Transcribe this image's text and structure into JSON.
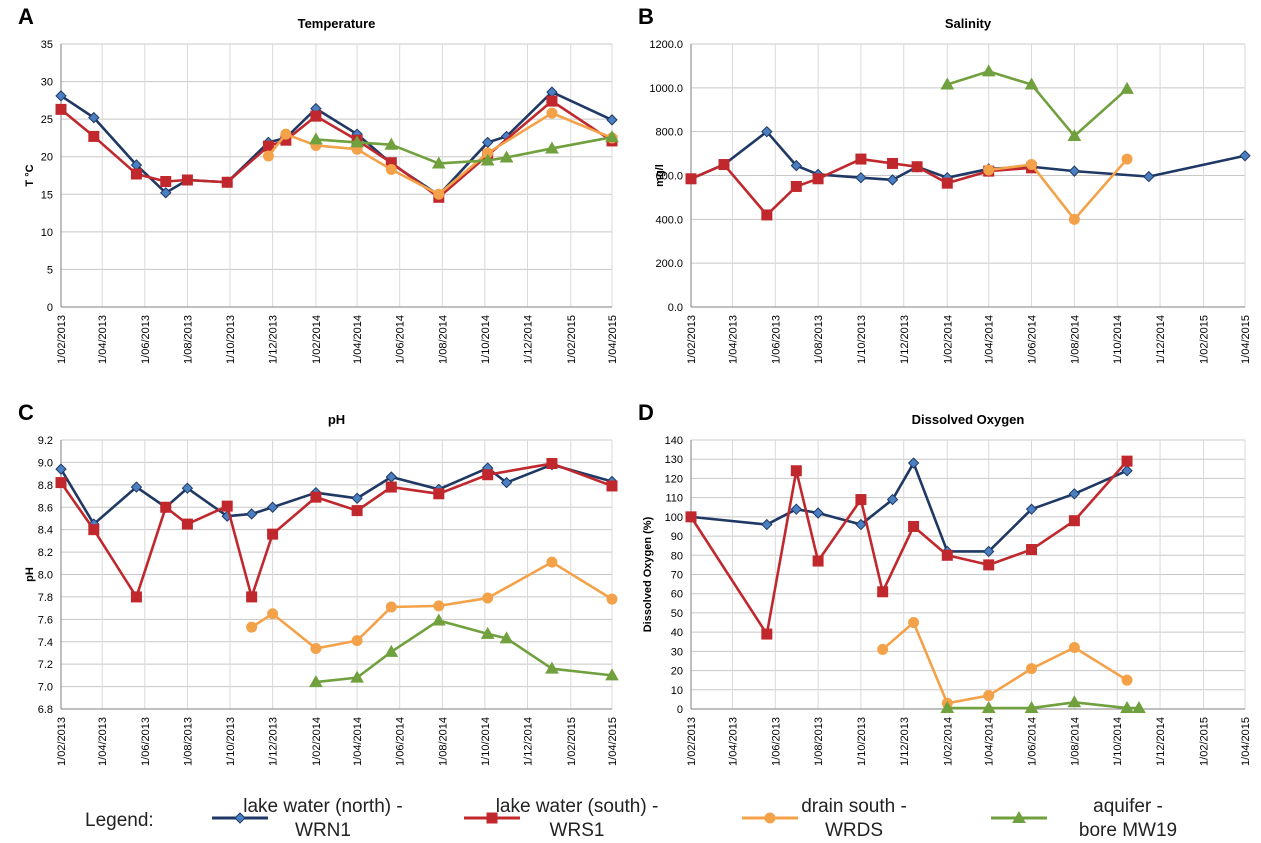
{
  "series_styles": [
    {
      "key": "wrn1",
      "color": "#1f3864",
      "marker_fill": "#4a7fc1",
      "marker": "diamond"
    },
    {
      "key": "wrs1",
      "color": "#c0282d",
      "marker_fill": "#c0282d",
      "marker": "square"
    },
    {
      "key": "wrds",
      "color": "#f4a24a",
      "marker_fill": "#f4a24a",
      "marker": "circle"
    },
    {
      "key": "mw19",
      "color": "#71a03e",
      "marker_fill": "#71a03e",
      "marker": "triangle"
    }
  ],
  "legend": {
    "label": "Legend:",
    "entries": [
      {
        "key": "wrn1",
        "line1": "lake water (north) -",
        "line2": "WRN1"
      },
      {
        "key": "wrs1",
        "line1": "lake water (south) -",
        "line2": "WRS1"
      },
      {
        "key": "wrds",
        "line1": "drain south -",
        "line2": "WRDS"
      },
      {
        "key": "mw19",
        "line1": "aquifer -",
        "line2": "bore MW19"
      }
    ]
  },
  "chart_data": [
    {
      "panel": "A",
      "type": "line",
      "title": "Temperature",
      "ylabel": "T °C",
      "ylim": [
        0,
        35
      ],
      "y_ticks": [
        0,
        5,
        10,
        15,
        20,
        25,
        30,
        35
      ],
      "y_tick_labels": [
        "0",
        "5",
        "10",
        "15",
        "20",
        "25",
        "30",
        "35"
      ],
      "x_domain": [
        "2013-02-01",
        "2015-04-01"
      ],
      "x_tick_labels": [
        "1/02/2013",
        "1/04/2013",
        "1/06/2013",
        "1/08/2013",
        "1/10/2013",
        "1/12/2013",
        "1/02/2014",
        "1/04/2014",
        "1/06/2014",
        "1/08/2014",
        "1/10/2014",
        "1/12/2014",
        "1/02/2015",
        "1/04/2015"
      ],
      "grid": true,
      "series": [
        {
          "key": "wrn1",
          "x": [
            "2013-02-01",
            "2013-03-20",
            "2013-05-20",
            "2013-07-01",
            "2013-08-01",
            "2013-09-27",
            "2013-11-25",
            "2013-12-20",
            "2014-02-01",
            "2014-04-01",
            "2014-05-20",
            "2014-07-27",
            "2014-10-05",
            "2014-11-01",
            "2015-01-05",
            "2015-04-01"
          ],
          "y": [
            28.1,
            25.2,
            18.9,
            15.2,
            16.9,
            16.6,
            21.9,
            22.5,
            26.4,
            23.0,
            19.1,
            14.9,
            21.9,
            22.7,
            28.6,
            24.9
          ]
        },
        {
          "key": "wrs1",
          "x": [
            "2013-02-01",
            "2013-03-20",
            "2013-05-20",
            "2013-07-01",
            "2013-08-01",
            "2013-09-27",
            "2013-11-25",
            "2013-12-20",
            "2014-02-01",
            "2014-04-01",
            "2014-05-20",
            "2014-07-27",
            "2014-10-05",
            "2015-01-05",
            "2015-04-01"
          ],
          "y": [
            26.3,
            22.7,
            17.7,
            16.7,
            16.9,
            16.6,
            21.4,
            22.2,
            25.4,
            22.2,
            19.2,
            14.6,
            20.2,
            27.4,
            22.1
          ]
        },
        {
          "key": "wrds",
          "x": [
            "2013-11-25",
            "2013-12-20",
            "2014-02-01",
            "2014-04-01",
            "2014-05-20",
            "2014-07-27",
            "2014-10-05",
            "2015-01-05",
            "2015-04-01"
          ],
          "y": [
            20.1,
            23.0,
            21.5,
            21.0,
            18.3,
            15.0,
            20.5,
            25.8,
            22.5
          ]
        },
        {
          "key": "mw19",
          "x": [
            "2014-02-01",
            "2014-04-01",
            "2014-05-20",
            "2014-07-27",
            "2014-10-05",
            "2014-11-01",
            "2015-01-05",
            "2015-04-01"
          ],
          "y": [
            22.3,
            21.9,
            21.6,
            19.1,
            19.5,
            19.9,
            21.1,
            22.6
          ]
        }
      ]
    },
    {
      "panel": "B",
      "type": "line",
      "title": "Salinity",
      "ylabel": "mg/l",
      "ylim": [
        0,
        1200
      ],
      "y_ticks": [
        0,
        200,
        400,
        600,
        800,
        1000,
        1200
      ],
      "y_tick_labels": [
        "0.0",
        "200.0",
        "400.0",
        "600.0",
        "800.0",
        "1000.0",
        "1200.0"
      ],
      "x_domain": [
        "2013-02-01",
        "2015-04-01"
      ],
      "x_tick_labels": [
        "1/02/2013",
        "1/04/2013",
        "1/06/2013",
        "1/08/2013",
        "1/10/2013",
        "1/12/2013",
        "1/02/2014",
        "1/04/2014",
        "1/06/2014",
        "1/08/2014",
        "1/10/2014",
        "1/12/2014",
        "1/02/2015",
        "1/04/2015"
      ],
      "grid": true,
      "series": [
        {
          "key": "wrn1",
          "x": [
            "2013-02-01",
            "2013-03-20",
            "2013-05-20",
            "2013-07-01",
            "2013-08-01",
            "2013-10-01",
            "2013-11-15",
            "2013-12-20",
            "2014-02-01",
            "2014-04-01",
            "2014-06-01",
            "2014-08-01",
            "2014-11-15",
            "2015-04-01"
          ],
          "y": [
            585,
            650,
            800,
            645,
            605,
            590,
            580,
            640,
            590,
            630,
            640,
            620,
            595,
            690
          ]
        },
        {
          "key": "wrs1",
          "x": [
            "2013-02-01",
            "2013-03-20",
            "2013-05-20",
            "2013-07-01",
            "2013-08-01",
            "2013-10-01",
            "2013-11-15",
            "2013-12-20",
            "2014-02-01",
            "2014-04-01",
            "2014-06-01"
          ],
          "y": [
            585,
            650,
            420,
            550,
            585,
            675,
            655,
            640,
            565,
            620,
            635
          ]
        },
        {
          "key": "wrds",
          "x": [
            "2014-04-01",
            "2014-06-01",
            "2014-08-01",
            "2014-10-15"
          ],
          "y": [
            625,
            650,
            400,
            675
          ]
        },
        {
          "key": "mw19",
          "x": [
            "2014-02-01",
            "2014-04-01",
            "2014-06-01",
            "2014-08-01",
            "2014-10-15"
          ],
          "y": [
            1015,
            1075,
            1015,
            780,
            995
          ]
        }
      ]
    },
    {
      "panel": "C",
      "type": "line",
      "title": "pH",
      "ylabel": "pH",
      "ylim": [
        6.8,
        9.2
      ],
      "y_ticks": [
        6.8,
        7.0,
        7.2,
        7.4,
        7.6,
        7.8,
        8.0,
        8.2,
        8.4,
        8.6,
        8.8,
        9.0,
        9.2
      ],
      "y_tick_labels": [
        "6.8",
        "7.0",
        "7.2",
        "7.4",
        "7.6",
        "7.8",
        "8.0",
        "8.2",
        "8.4",
        "8.6",
        "8.8",
        "9.0",
        "9.2"
      ],
      "x_domain": [
        "2013-02-01",
        "2015-04-01"
      ],
      "x_tick_labels": [
        "1/02/2013",
        "1/04/2013",
        "1/06/2013",
        "1/08/2013",
        "1/10/2013",
        "1/12/2013",
        "1/02/2014",
        "1/04/2014",
        "1/06/2014",
        "1/08/2014",
        "1/10/2014",
        "1/12/2014",
        "1/02/2015",
        "1/04/2015"
      ],
      "grid": true,
      "series": [
        {
          "key": "wrn1",
          "x": [
            "2013-02-01",
            "2013-03-20",
            "2013-05-20",
            "2013-07-01",
            "2013-08-01",
            "2013-09-27",
            "2013-11-01",
            "2013-12-01",
            "2014-02-01",
            "2014-04-01",
            "2014-05-20",
            "2014-07-27",
            "2014-10-05",
            "2014-11-01",
            "2015-01-05",
            "2015-04-01"
          ],
          "y": [
            8.94,
            8.45,
            8.78,
            8.6,
            8.77,
            8.52,
            8.54,
            8.6,
            8.73,
            8.68,
            8.87,
            8.76,
            8.95,
            8.82,
            8.98,
            8.83
          ]
        },
        {
          "key": "wrs1",
          "x": [
            "2013-02-01",
            "2013-03-20",
            "2013-05-20",
            "2013-07-01",
            "2013-08-01",
            "2013-09-27",
            "2013-11-01",
            "2013-12-01",
            "2014-02-01",
            "2014-04-01",
            "2014-05-20",
            "2014-07-27",
            "2014-10-05",
            "2015-01-05",
            "2015-04-01"
          ],
          "y": [
            8.82,
            8.4,
            7.8,
            8.6,
            8.45,
            8.61,
            7.8,
            8.36,
            8.69,
            8.57,
            8.78,
            8.72,
            8.89,
            8.99,
            8.79
          ]
        },
        {
          "key": "wrds",
          "x": [
            "2013-11-01",
            "2013-12-01",
            "2014-02-01",
            "2014-04-01",
            "2014-05-20",
            "2014-07-27",
            "2014-10-05",
            "2015-01-05",
            "2015-04-01"
          ],
          "y": [
            7.53,
            7.65,
            7.34,
            7.41,
            7.71,
            7.72,
            7.79,
            8.11,
            7.78
          ]
        },
        {
          "key": "mw19",
          "x": [
            "2014-02-01",
            "2014-04-01",
            "2014-05-20",
            "2014-07-27",
            "2014-10-05",
            "2014-11-01",
            "2015-01-05",
            "2015-04-01"
          ],
          "y": [
            7.04,
            7.08,
            7.31,
            7.59,
            7.47,
            7.43,
            7.16,
            7.1
          ]
        }
      ]
    },
    {
      "panel": "D",
      "type": "line",
      "title": "Dissolved Oxygen",
      "ylabel": "Dissolved Oxygen (%)",
      "ylim": [
        0,
        140
      ],
      "y_ticks": [
        0,
        10,
        20,
        30,
        40,
        50,
        60,
        70,
        80,
        90,
        100,
        110,
        120,
        130,
        140
      ],
      "y_tick_labels": [
        "0",
        "10",
        "20",
        "30",
        "40",
        "50",
        "60",
        "70",
        "80",
        "90",
        "100",
        "110",
        "120",
        "130",
        "140"
      ],
      "x_domain": [
        "2013-02-01",
        "2015-04-01"
      ],
      "x_tick_labels": [
        "1/02/2013",
        "1/04/2013",
        "1/06/2013",
        "1/08/2013",
        "1/10/2013",
        "1/12/2013",
        "1/02/2014",
        "1/04/2014",
        "1/06/2014",
        "1/08/2014",
        "1/10/2014",
        "1/12/2014",
        "1/02/2015",
        "1/04/2015"
      ],
      "grid": true,
      "series": [
        {
          "key": "wrn1",
          "x": [
            "2013-02-01",
            "2013-05-20",
            "2013-07-01",
            "2013-08-01",
            "2013-10-01",
            "2013-11-15",
            "2013-12-15",
            "2014-02-01",
            "2014-04-01",
            "2014-06-01",
            "2014-08-01",
            "2014-10-15"
          ],
          "y": [
            100,
            96,
            104,
            102,
            96,
            109,
            128,
            82,
            82,
            104,
            112,
            124
          ]
        },
        {
          "key": "wrs1",
          "x": [
            "2013-02-01",
            "2013-05-20",
            "2013-07-01",
            "2013-08-01",
            "2013-10-01",
            "2013-11-01",
            "2013-12-15",
            "2014-02-01",
            "2014-04-01",
            "2014-06-01",
            "2014-08-01",
            "2014-10-15"
          ],
          "y": [
            100,
            39,
            124,
            77,
            109,
            61,
            95,
            80,
            75,
            83,
            98,
            129
          ]
        },
        {
          "key": "wrds",
          "x": [
            "2013-11-01",
            "2013-12-15",
            "2014-02-01",
            "2014-04-01",
            "2014-06-01",
            "2014-08-01",
            "2014-10-15"
          ],
          "y": [
            31,
            45,
            3,
            7,
            21,
            32,
            15
          ]
        },
        {
          "key": "mw19",
          "x": [
            "2014-02-01",
            "2014-04-01",
            "2014-06-01",
            "2014-08-01",
            "2014-10-15",
            "2014-11-01"
          ],
          "y": [
            0.5,
            0.5,
            0.5,
            3.5,
            0.5,
            0.5
          ]
        }
      ]
    }
  ]
}
